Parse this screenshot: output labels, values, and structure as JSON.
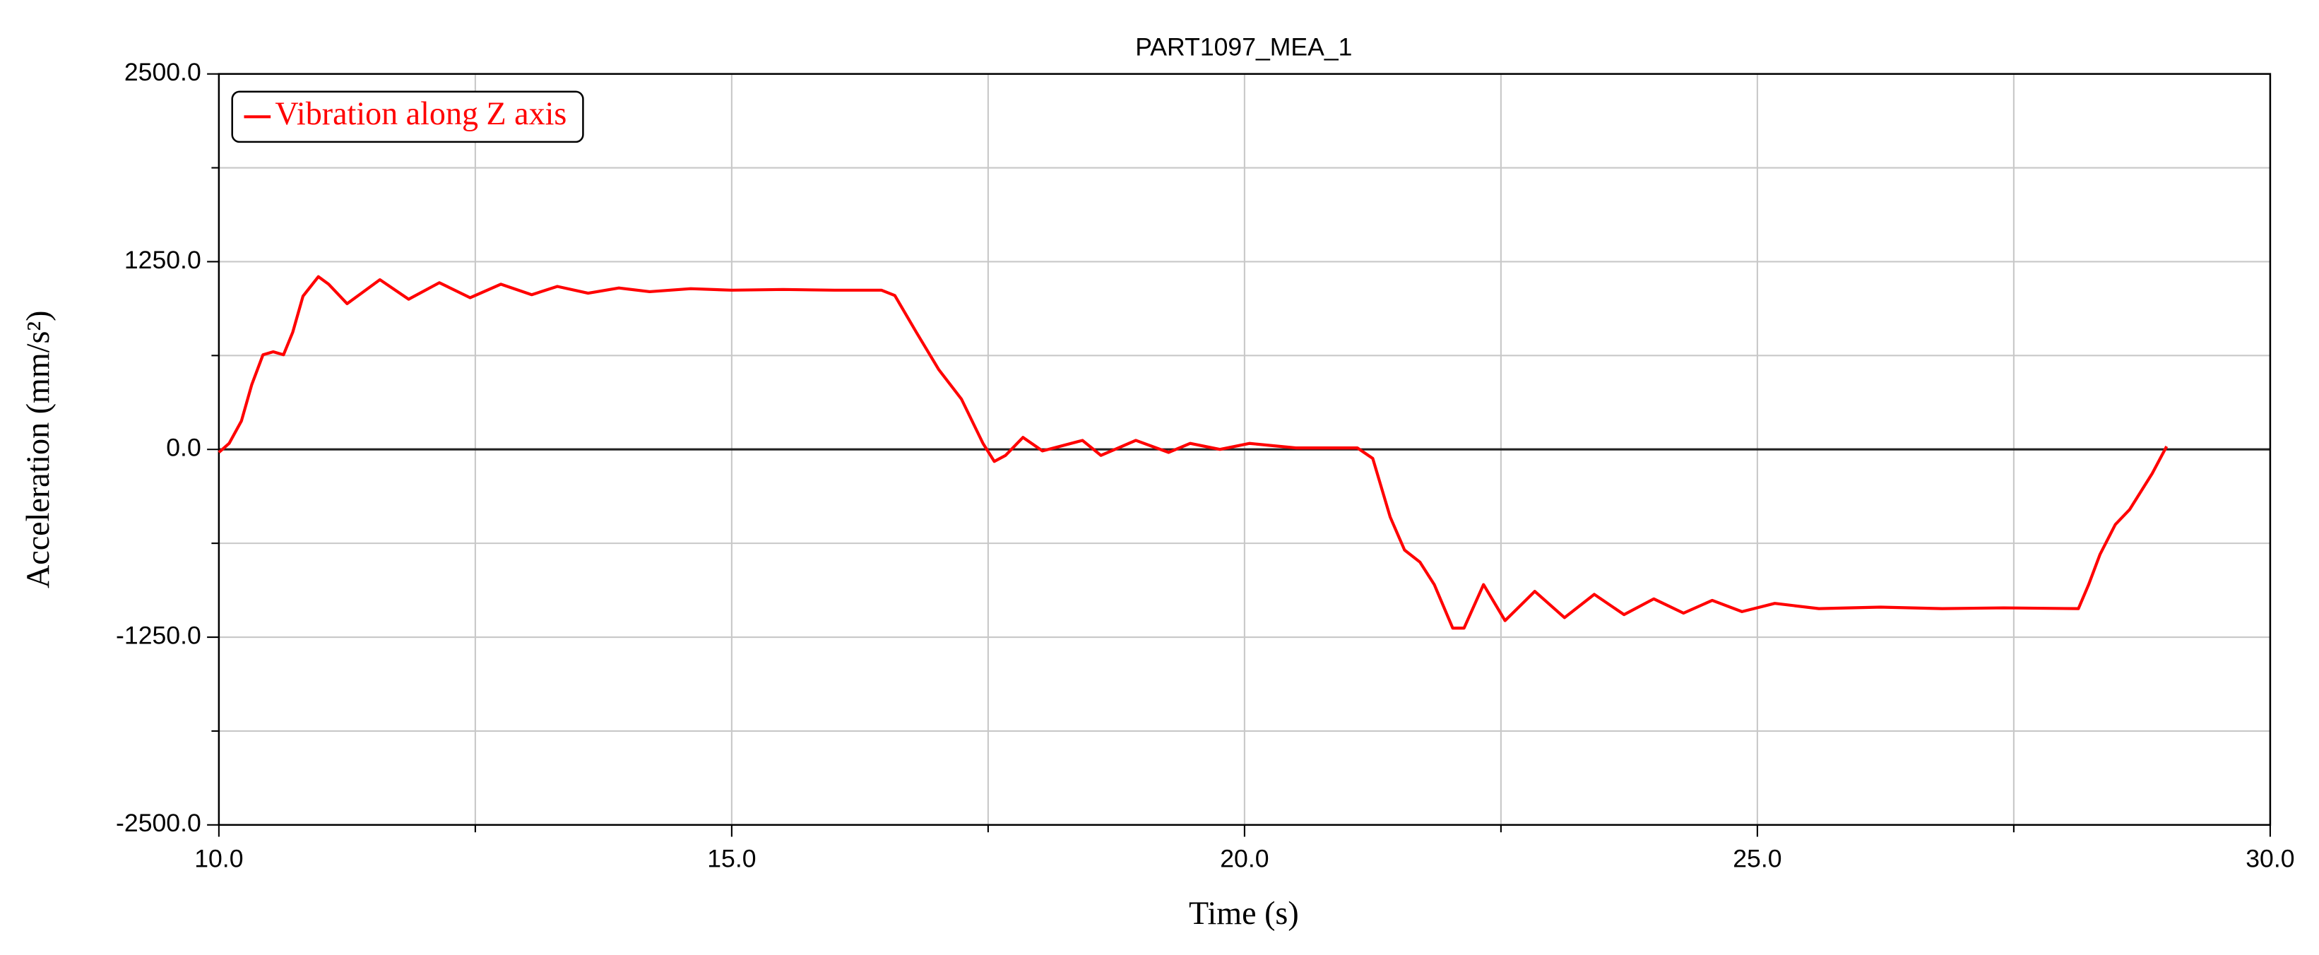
{
  "chart_data": {
    "type": "line",
    "title": "PART1097_MEA_1",
    "xlabel": "Time (s)",
    "ylabel": "Acceleration (mm/s²)",
    "legend": "upper left",
    "grid": true,
    "xlim": [
      10,
      30
    ],
    "ylim": [
      -2500,
      2500
    ],
    "xticks": [
      {
        "value": 10,
        "label": "10.0"
      },
      {
        "value": 15,
        "label": "15.0"
      },
      {
        "value": 20,
        "label": "20.0"
      },
      {
        "value": 25,
        "label": "25.0"
      },
      {
        "value": 30,
        "label": "30.0"
      }
    ],
    "xminorticks": [
      12.5,
      17.5,
      22.5,
      27.5
    ],
    "yticks": [
      {
        "value": 2500,
        "label": "2500.0"
      },
      {
        "value": 1250,
        "label": "1250.0"
      },
      {
        "value": 0,
        "label": "0.0"
      },
      {
        "value": -1250,
        "label": "-1250.0"
      },
      {
        "value": -2500,
        "label": "-2500.0"
      }
    ],
    "yminorticks": [
      1875,
      625,
      -625,
      -1875
    ],
    "x": [
      10.0,
      10.1,
      10.22,
      10.32,
      10.43,
      10.53,
      10.63,
      10.72,
      10.82,
      10.97,
      11.07,
      11.25,
      11.57,
      11.85,
      12.15,
      12.45,
      12.75,
      13.05,
      13.3,
      13.6,
      13.9,
      14.2,
      14.6,
      15.0,
      15.5,
      16.0,
      16.46,
      16.59,
      16.8,
      17.02,
      17.24,
      17.45,
      17.56,
      17.67,
      17.84,
      18.03,
      18.42,
      18.6,
      18.94,
      19.26,
      19.47,
      19.76,
      20.05,
      20.5,
      21.1,
      21.25,
      21.42,
      21.56,
      21.71,
      21.85,
      22.03,
      22.14,
      22.33,
      22.54,
      22.83,
      23.12,
      23.41,
      23.7,
      23.99,
      24.28,
      24.56,
      24.85,
      25.17,
      25.6,
      26.2,
      26.8,
      27.4,
      28.13,
      28.23,
      28.34,
      28.49,
      28.63,
      28.85,
      28.99
    ],
    "series": [
      {
        "name": "Vibration along Z axis",
        "color": "#ff0000",
        "values": [
          -20,
          40,
          190,
          430,
          630,
          650,
          630,
          780,
          1020,
          1150,
          1100,
          970,
          1130,
          1000,
          1110,
          1010,
          1100,
          1030,
          1085,
          1040,
          1075,
          1050,
          1070,
          1060,
          1065,
          1060,
          1060,
          1025,
          780,
          530,
          335,
          40,
          -80,
          -40,
          80,
          -10,
          60,
          -40,
          60,
          -20,
          40,
          0,
          40,
          10,
          10,
          -60,
          -450,
          -670,
          -750,
          -900,
          -1190,
          -1190,
          -900,
          -1140,
          -945,
          -1120,
          -965,
          -1100,
          -995,
          -1090,
          -1005,
          -1080,
          -1025,
          -1060,
          -1050,
          -1060,
          -1055,
          -1060,
          -900,
          -700,
          -500,
          -400,
          -160,
          20
        ]
      }
    ]
  }
}
